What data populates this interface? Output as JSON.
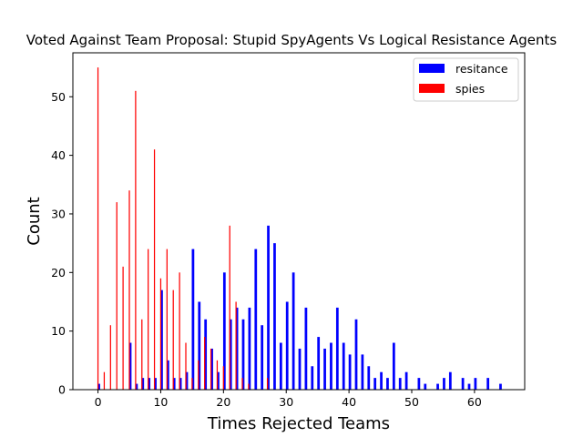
{
  "chart_data": {
    "type": "bar",
    "title": "Voted Against Team Proposal: Stupid SpyAgents Vs Logical Resistance Agents",
    "xlabel": "Times Rejected Teams",
    "ylabel": "Count",
    "xlim": [
      -4,
      68
    ],
    "ylim": [
      0,
      57.5
    ],
    "xticks": [
      0,
      10,
      20,
      30,
      40,
      50,
      60
    ],
    "yticks": [
      0,
      10,
      20,
      30,
      40,
      50
    ],
    "grid": false,
    "legend_position": "top-right",
    "series": [
      {
        "name": "resitance",
        "color": "#0000ff",
        "x": [
          0,
          5,
          6,
          7,
          8,
          9,
          10,
          11,
          12,
          13,
          14,
          15,
          16,
          17,
          18,
          19,
          20,
          21,
          22,
          23,
          24,
          25,
          26,
          27,
          28,
          29,
          30,
          31,
          32,
          33,
          34,
          35,
          36,
          37,
          38,
          39,
          40,
          41,
          42,
          43,
          44,
          45,
          46,
          47,
          48,
          49,
          51,
          52,
          54,
          55,
          56,
          58,
          59,
          60,
          62,
          64
        ],
        "values": [
          1,
          8,
          1,
          2,
          2,
          2,
          17,
          5,
          2,
          2,
          3,
          24,
          15,
          12,
          7,
          3,
          20,
          12,
          14,
          12,
          14,
          24,
          11,
          28,
          25,
          8,
          15,
          20,
          7,
          14,
          4,
          9,
          7,
          8,
          14,
          8,
          6,
          12,
          6,
          4,
          2,
          3,
          2,
          8,
          2,
          3,
          2,
          1,
          1,
          2,
          3,
          2,
          1,
          2,
          2,
          1
        ]
      },
      {
        "name": "spies",
        "color": "#ff0000",
        "x": [
          0,
          1,
          2,
          3,
          4,
          5,
          6,
          7,
          8,
          9,
          10,
          11,
          12,
          13,
          14,
          15,
          16,
          17,
          18,
          19,
          20,
          21,
          22,
          23,
          24,
          27
        ],
        "values": [
          55,
          3,
          11,
          32,
          21,
          34,
          51,
          12,
          24,
          41,
          19,
          24,
          17,
          20,
          8,
          2,
          5,
          9,
          7,
          5,
          4,
          28,
          15,
          2,
          1,
          2
        ]
      }
    ]
  }
}
